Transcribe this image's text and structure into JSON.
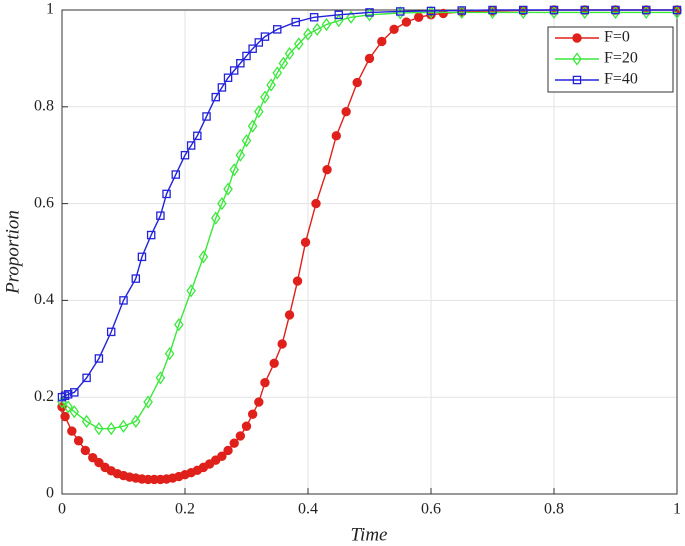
{
  "chart_data": {
    "type": "line",
    "xlabel": "Time",
    "ylabel": "Proportion",
    "xlim": [
      0,
      1
    ],
    "ylim": [
      0,
      1
    ],
    "xticks": [
      0,
      0.2,
      0.4,
      0.6,
      0.8,
      1
    ],
    "yticks": [
      0,
      0.2,
      0.4,
      0.6,
      0.8,
      1
    ],
    "grid": true,
    "legend": "upper right",
    "series": [
      {
        "name": "F=0",
        "color": "#e0201b",
        "marker": "circle",
        "x": [
          0,
          0.005,
          0.016,
          0.027,
          0.038,
          0.05,
          0.06,
          0.07,
          0.08,
          0.09,
          0.1,
          0.11,
          0.12,
          0.13,
          0.14,
          0.15,
          0.16,
          0.17,
          0.18,
          0.19,
          0.2,
          0.21,
          0.22,
          0.23,
          0.24,
          0.25,
          0.26,
          0.27,
          0.28,
          0.29,
          0.3,
          0.31,
          0.32,
          0.33,
          0.345,
          0.358,
          0.37,
          0.383,
          0.396,
          0.413,
          0.431,
          0.446,
          0.462,
          0.48,
          0.5,
          0.52,
          0.54,
          0.56,
          0.58,
          0.6,
          0.62,
          0.65,
          0.7,
          0.75,
          0.8,
          0.85,
          0.9,
          0.95,
          1
        ],
        "values": [
          0.18,
          0.16,
          0.13,
          0.11,
          0.09,
          0.075,
          0.065,
          0.055,
          0.048,
          0.042,
          0.038,
          0.035,
          0.033,
          0.031,
          0.03,
          0.03,
          0.03,
          0.031,
          0.033,
          0.036,
          0.04,
          0.044,
          0.049,
          0.055,
          0.062,
          0.07,
          0.078,
          0.09,
          0.105,
          0.12,
          0.14,
          0.165,
          0.19,
          0.23,
          0.27,
          0.31,
          0.37,
          0.44,
          0.52,
          0.6,
          0.67,
          0.74,
          0.79,
          0.85,
          0.9,
          0.935,
          0.96,
          0.975,
          0.985,
          0.99,
          0.993,
          0.996,
          0.998,
          0.999,
          1,
          1,
          1,
          1,
          1
        ]
      },
      {
        "name": "F=20",
        "color": "#3ce83c",
        "marker": "diamond",
        "x": [
          0,
          0.01,
          0.02,
          0.04,
          0.06,
          0.08,
          0.1,
          0.12,
          0.14,
          0.16,
          0.175,
          0.19,
          0.21,
          0.23,
          0.25,
          0.26,
          0.27,
          0.28,
          0.29,
          0.3,
          0.31,
          0.32,
          0.33,
          0.34,
          0.35,
          0.36,
          0.37,
          0.385,
          0.4,
          0.415,
          0.43,
          0.45,
          0.47,
          0.5,
          0.55,
          0.6,
          0.65,
          0.7,
          0.75,
          0.8,
          0.85,
          0.9,
          0.95,
          1
        ],
        "values": [
          0.19,
          0.18,
          0.17,
          0.15,
          0.135,
          0.135,
          0.14,
          0.15,
          0.19,
          0.24,
          0.29,
          0.35,
          0.42,
          0.49,
          0.57,
          0.6,
          0.63,
          0.67,
          0.7,
          0.73,
          0.76,
          0.79,
          0.82,
          0.845,
          0.87,
          0.89,
          0.91,
          0.93,
          0.95,
          0.96,
          0.97,
          0.978,
          0.985,
          0.99,
          0.994,
          0.995,
          0.995,
          0.995,
          0.995,
          0.995,
          0.995,
          0.995,
          0.995,
          0.995
        ]
      },
      {
        "name": "F=40",
        "color": "#2323d9",
        "marker": "square",
        "x": [
          0,
          0.005,
          0.01,
          0.02,
          0.04,
          0.06,
          0.08,
          0.1,
          0.12,
          0.13,
          0.145,
          0.16,
          0.17,
          0.185,
          0.2,
          0.21,
          0.22,
          0.235,
          0.25,
          0.26,
          0.27,
          0.28,
          0.29,
          0.3,
          0.31,
          0.32,
          0.33,
          0.35,
          0.38,
          0.41,
          0.45,
          0.5,
          0.55,
          0.6,
          0.65,
          0.7,
          0.75,
          0.8,
          0.85,
          0.9,
          0.95,
          1
        ],
        "values": [
          0.2,
          0.203,
          0.206,
          0.21,
          0.24,
          0.28,
          0.335,
          0.4,
          0.445,
          0.49,
          0.535,
          0.575,
          0.62,
          0.66,
          0.7,
          0.72,
          0.74,
          0.78,
          0.82,
          0.84,
          0.86,
          0.875,
          0.89,
          0.905,
          0.92,
          0.933,
          0.945,
          0.96,
          0.975,
          0.985,
          0.99,
          0.995,
          0.997,
          0.998,
          0.999,
          1,
          1,
          1,
          1,
          1,
          1,
          1
        ]
      }
    ]
  }
}
